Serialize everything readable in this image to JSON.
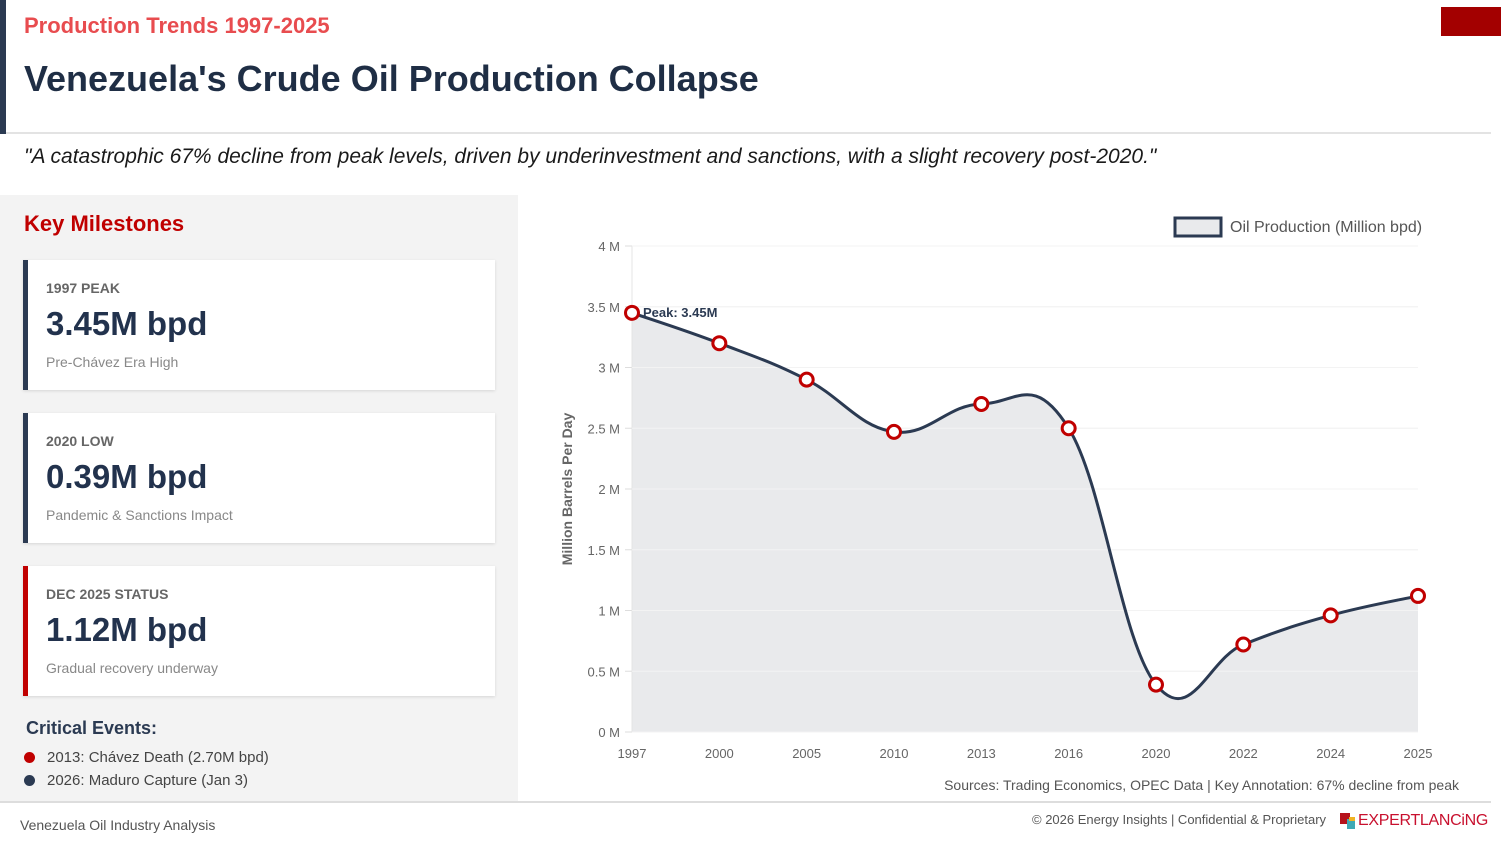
{
  "header": {
    "subtitle": "Production  Trends 1997-2025",
    "title": "Venezuela's Crude Oil Production Collapse",
    "quote": "\"A catastrophic 67% decline from peak levels, driven by underinvestment and sanctions, with a slight recovery post-2020.\""
  },
  "sidebar": {
    "heading": "Key Milestones",
    "cards": [
      {
        "label": "1997 PEAK",
        "value": "3.45M bpd",
        "description": "Pre-Chávez Era High",
        "accent": "#2b3a52"
      },
      {
        "label": "2020 LOW",
        "value": "0.39M bpd",
        "description": "Pandemic & Sanctions Impact",
        "accent": "#2b3a52"
      },
      {
        "label": "DEC 2025 STATUS",
        "value": "1.12M bpd",
        "description": "Gradual recovery underway",
        "accent": "#c00000"
      }
    ],
    "events_heading": "Critical Events:",
    "events": [
      {
        "text": "2013: Chávez Death (2.70M bpd)",
        "color": "#c00000"
      },
      {
        "text": "2026: Maduro Capture (Jan 3)",
        "color": "#2b3a52"
      }
    ]
  },
  "chart_data": {
    "type": "area",
    "title": "",
    "xlabel": "",
    "ylabel": "Million Barrels Per Day",
    "categories": [
      "1997",
      "2000",
      "2005",
      "2010",
      "2013",
      "2016",
      "2020",
      "2022",
      "2024",
      "2025"
    ],
    "series": [
      {
        "name": "Oil Production (Million bpd)",
        "values": [
          3.45,
          3.2,
          2.9,
          2.47,
          2.7,
          2.5,
          0.39,
          0.72,
          0.96,
          1.12
        ],
        "line_color": "#2b3a52",
        "fill_color": "#e9eaec",
        "marker_color": "#c00000"
      }
    ],
    "ylim": [
      0,
      4
    ],
    "y_ticks": [
      0,
      0.5,
      1,
      1.5,
      2,
      2.5,
      3,
      3.5,
      4
    ],
    "y_tick_labels": [
      "0 M",
      "0.5 M",
      "1 M",
      "1.5 M",
      "2 M",
      "2.5 M",
      "3 M",
      "3.5 M",
      "4 M"
    ],
    "grid": true,
    "legend_position": "top-right",
    "annotations": [
      {
        "category": "1997",
        "text": "Peak: 3.45M"
      }
    ]
  },
  "chart_footer": {
    "sources": "Sources: Trading Economics, OPEC Data | Key Annotation: 67% decline from peak"
  },
  "footer": {
    "left": "Venezuela Oil Industry Analysis",
    "right": "© 2026 Energy Insights | Confidential & Proprietary",
    "logo": "EXPERTLANCiNG"
  },
  "colors": {
    "accent_red": "#c00000",
    "navy": "#2b3a52",
    "subtitle_red": "#e84c4f"
  }
}
